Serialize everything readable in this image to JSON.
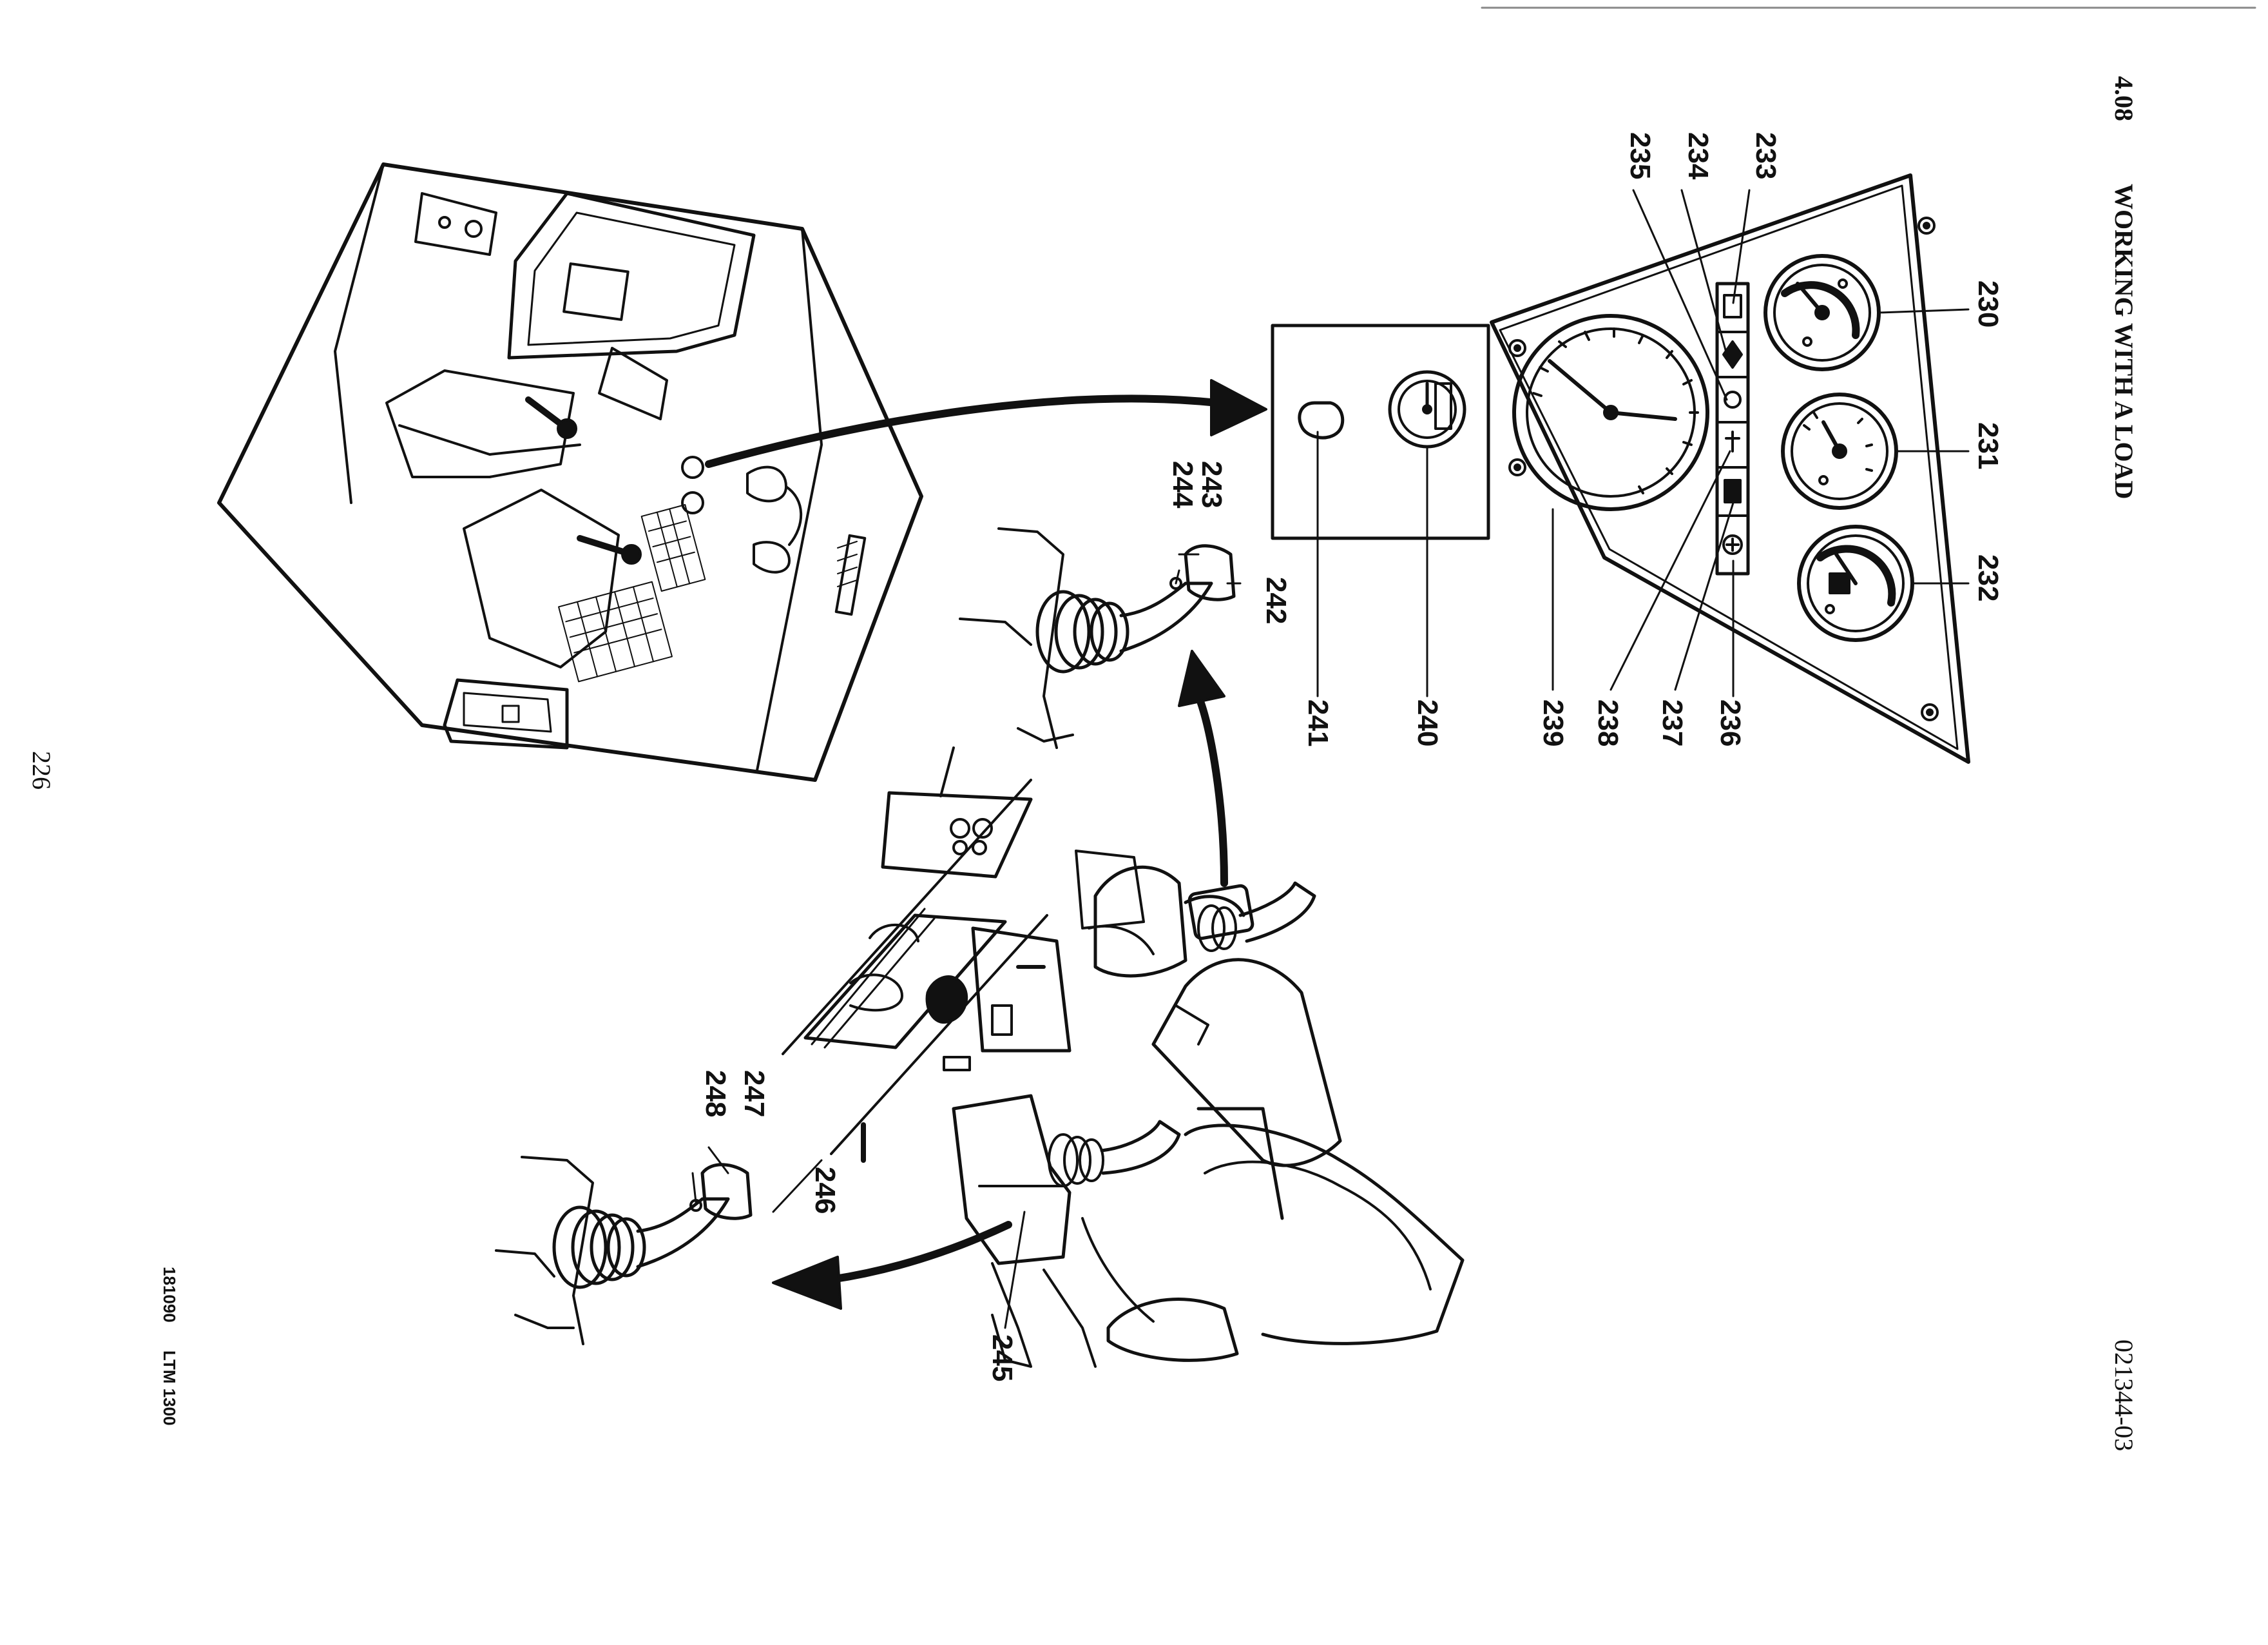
{
  "header": {
    "section_number": "4.08",
    "section_title": "WORKING WITH A LOAD",
    "doc_code": "021344-03"
  },
  "footer": {
    "page_number": "226",
    "date_code": "181090",
    "model": "LTM 1300"
  },
  "callouts": {
    "c230": "230",
    "c231": "231",
    "c232": "232",
    "c233": "233",
    "c234": "234",
    "c235": "235",
    "c236": "236",
    "c237": "237",
    "c238": "238",
    "c239": "239",
    "c240": "240",
    "c241": "241",
    "c242": "242",
    "c243": "243",
    "c244": "244",
    "c245": "245",
    "c246": "246",
    "c247": "247",
    "c248": "248"
  },
  "icons": {
    "instrument_panel": "instrument-panel-icon",
    "gauge": "gauge-icon",
    "speedometer": "speedometer-icon",
    "control_lever": "control-lever-icon",
    "cabin": "crane-cabin-icon",
    "seat": "operator-seat-icon",
    "arrow": "pointer-arrow-icon"
  }
}
